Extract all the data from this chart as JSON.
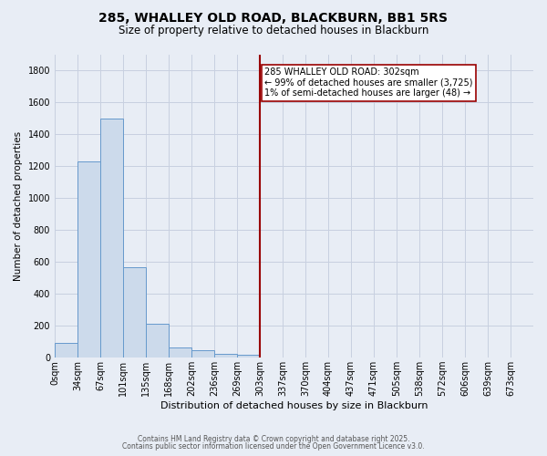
{
  "title": "285, WHALLEY OLD ROAD, BLACKBURN, BB1 5RS",
  "subtitle": "Size of property relative to detached houses in Blackburn",
  "xlabel": "Distribution of detached houses by size in Blackburn",
  "ylabel": "Number of detached properties",
  "bin_labels": [
    "0sqm",
    "34sqm",
    "67sqm",
    "101sqm",
    "135sqm",
    "168sqm",
    "202sqm",
    "236sqm",
    "269sqm",
    "303sqm",
    "337sqm",
    "370sqm",
    "404sqm",
    "437sqm",
    "471sqm",
    "505sqm",
    "538sqm",
    "572sqm",
    "606sqm",
    "639sqm",
    "673sqm"
  ],
  "bar_values": [
    90,
    1230,
    1500,
    570,
    210,
    65,
    45,
    25,
    20,
    0,
    0,
    0,
    0,
    0,
    0,
    0,
    0,
    0,
    0,
    0,
    0
  ],
  "bar_color": "#ccdaeb",
  "bar_edge_color": "#6699cc",
  "vline_x_index": 9,
  "vline_color": "#990000",
  "annotation_text": "285 WHALLEY OLD ROAD: 302sqm\n← 99% of detached houses are smaller (3,725)\n1% of semi-detached houses are larger (48) →",
  "annotation_box_color": "#ffffff",
  "annotation_box_edge": "#990000",
  "ylim": [
    0,
    1900
  ],
  "yticks": [
    0,
    200,
    400,
    600,
    800,
    1000,
    1200,
    1400,
    1600,
    1800
  ],
  "background_color": "#e8edf5",
  "grid_color": "#c8d0e0",
  "footer_line1": "Contains HM Land Registry data © Crown copyright and database right 2025.",
  "footer_line2": "Contains public sector information licensed under the Open Government Licence v3.0.",
  "title_fontsize": 10,
  "subtitle_fontsize": 8.5,
  "xlabel_fontsize": 8,
  "ylabel_fontsize": 7.5,
  "tick_fontsize": 7,
  "footer_fontsize": 5.5
}
